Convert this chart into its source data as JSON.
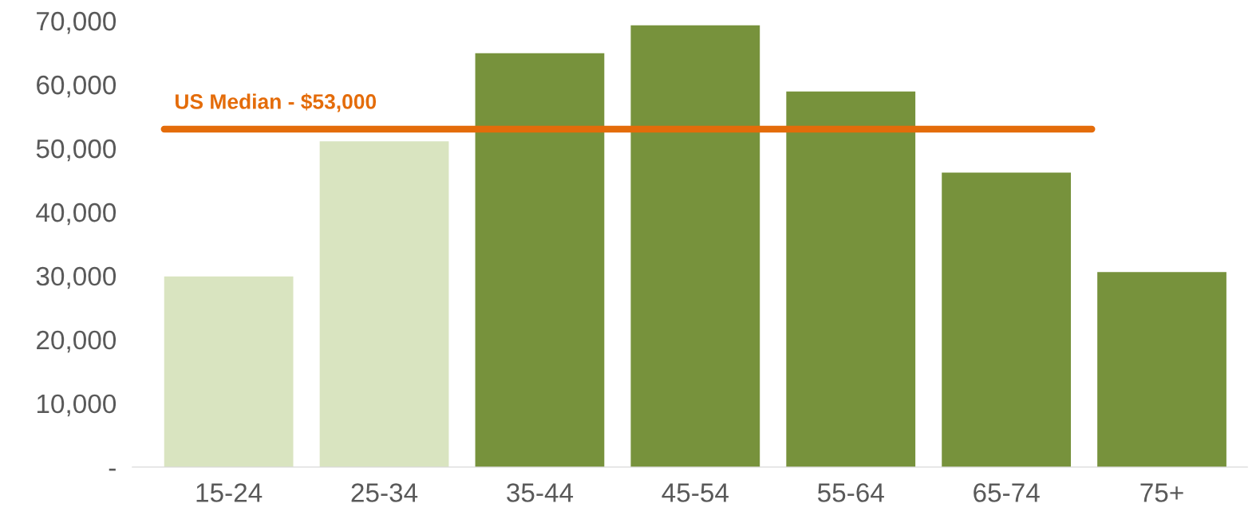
{
  "chart_data": {
    "type": "bar",
    "categories": [
      "15-24",
      "25-34",
      "35-44",
      "45-54",
      "55-64",
      "65-74",
      "75+"
    ],
    "values": [
      29900,
      51100,
      64900,
      69300,
      58900,
      46200,
      30600
    ],
    "colors": [
      "#d9e4c0",
      "#d9e4c0",
      "#77923c",
      "#77923c",
      "#77923c",
      "#77923c",
      "#77923c"
    ],
    "ylim": [
      0,
      70000
    ],
    "yticks": [
      {
        "value": 0,
        "label": "-"
      },
      {
        "value": 10000,
        "label": "10,000"
      },
      {
        "value": 20000,
        "label": "20,000"
      },
      {
        "value": 30000,
        "label": "30,000"
      },
      {
        "value": 40000,
        "label": "40,000"
      },
      {
        "value": 50000,
        "label": "50,000"
      },
      {
        "value": 60000,
        "label": "60,000"
      },
      {
        "value": 70000,
        "label": "70,000"
      }
    ],
    "ref_lines": [
      {
        "axis": "y",
        "value": 53000,
        "label": "US Median - $53,000",
        "color": "#e46c0a"
      }
    ],
    "grid": false,
    "legend": false
  }
}
